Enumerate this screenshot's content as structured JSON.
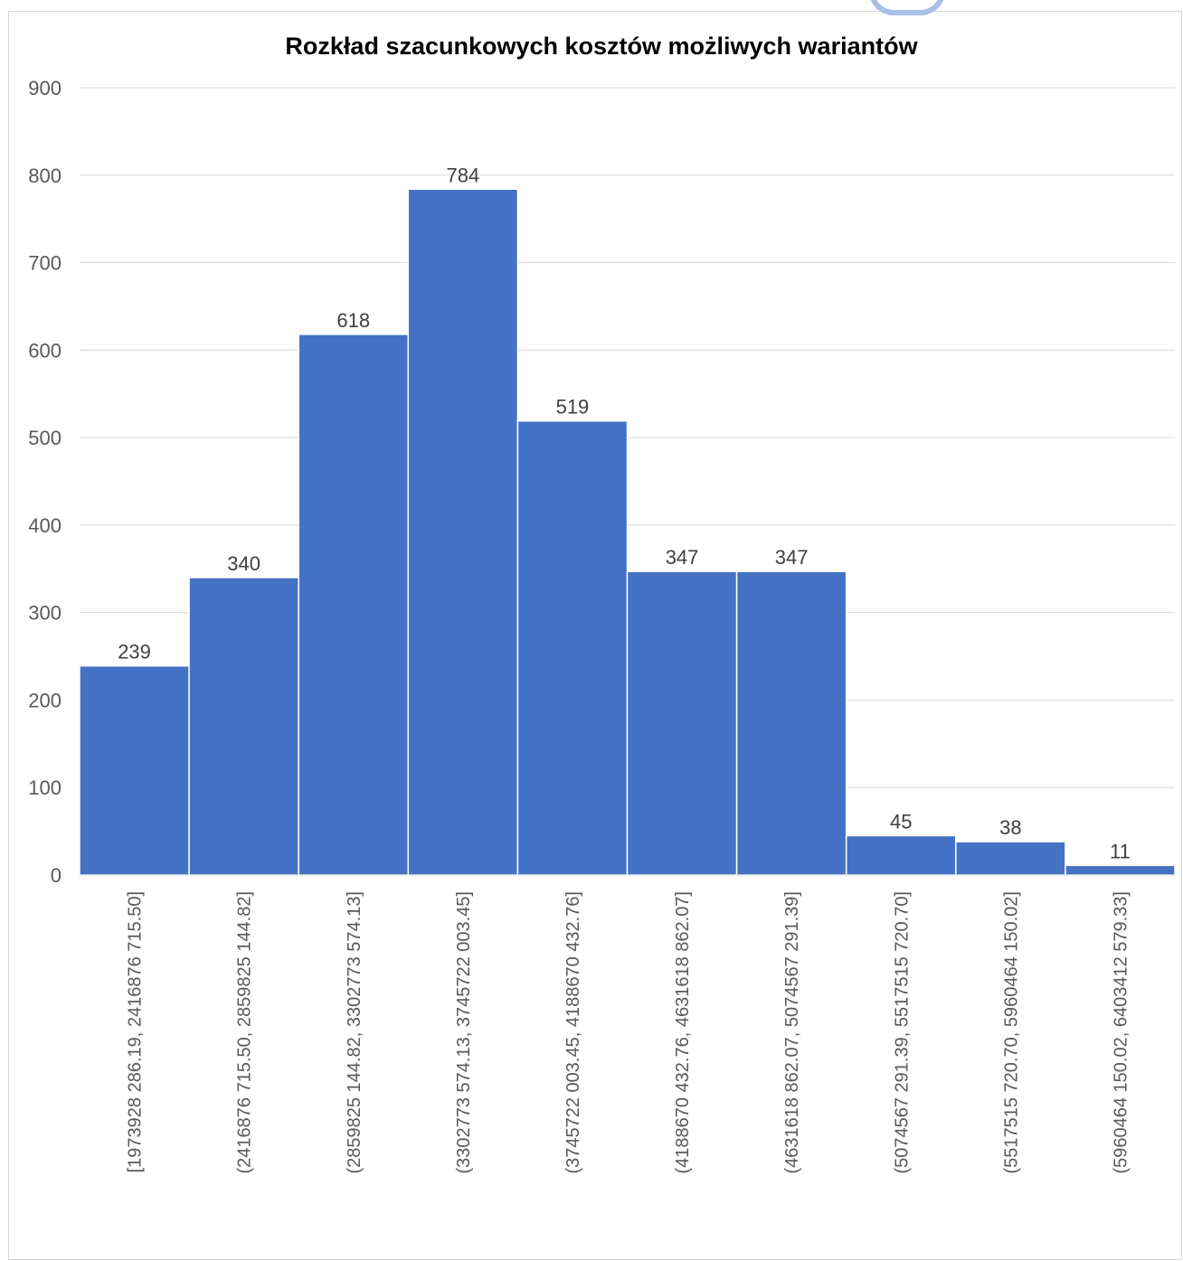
{
  "chart_data": {
    "type": "bar",
    "title": "Rozkład szacunkowych kosztów możliwych wariantów",
    "xlabel": "",
    "ylabel": "",
    "ylim": [
      0,
      900
    ],
    "yticks": [
      "0",
      "100",
      "200",
      "300",
      "400",
      "500",
      "600",
      "700",
      "800",
      "900"
    ],
    "grid": true,
    "legend": "none",
    "bar_color": "#4472c4",
    "categories": [
      "[1973928 286.19, 2416876 715.50]",
      "(2416876 715.50, 2859825 144.82]",
      "(2859825 144.82, 3302773 574.13]",
      "(3302773 574.13, 3745722 003.45]",
      "(3745722 003.45, 4188670 432.76]",
      "(4188670 432.76, 4631618 862.07]",
      "(4631618 862.07, 5074567 291.39]",
      "(5074567 291.39, 5517515 720.70]",
      "(5517515 720.70, 5960464 150.02]",
      "(5960464 150.02, 6403412 579.33]"
    ],
    "values": [
      239,
      340,
      618,
      784,
      519,
      347,
      347,
      45,
      38,
      11
    ],
    "data_labels": [
      "239",
      "340",
      "618",
      "784",
      "519",
      "347",
      "347",
      "45",
      "38",
      "11"
    ]
  }
}
